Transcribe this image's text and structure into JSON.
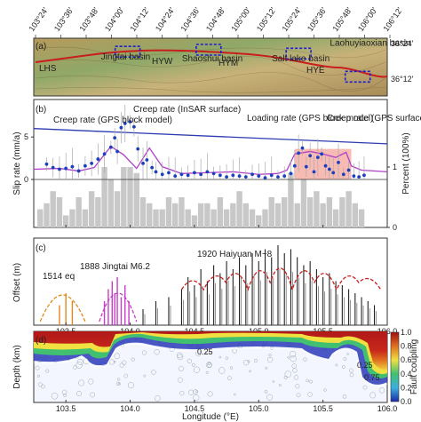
{
  "chart_data": [
    {
      "panel": "a",
      "type": "map",
      "panel_label": "(a)",
      "top_lon_ticks": [
        "103°24'",
        "103°36'",
        "103°48'",
        "104°00'",
        "104°12'",
        "104°24'",
        "104°36'",
        "104°48'",
        "105°00'",
        "105°12'",
        "105°24'",
        "105°36'",
        "105°48'",
        "106°00'",
        "106°12'"
      ],
      "lat_ticks": [
        "36°24'",
        "36°12'"
      ],
      "map_labels": [
        {
          "text": "Jingtai basin",
          "lon": 103.98,
          "lat": 36.29
        },
        {
          "text": "Shaoshui basin",
          "lon": 104.61,
          "lat": 36.28
        },
        {
          "text": "Salt lake basin",
          "lon": 105.31,
          "lat": 36.28
        },
        {
          "text": "Laohuyiaoxian basin",
          "lon": 105.83,
          "lat": 36.36
        }
      ],
      "fault_segments": [
        "LHS",
        "HYW",
        "HYM",
        "HYE"
      ],
      "colors": {
        "fault": "#c81e1e",
        "basin_box": "#1c1cd2",
        "label": "#1414b4",
        "segment": "#c81e1e"
      }
    },
    {
      "panel": "b",
      "type": "scatter",
      "panel_label": "(b)",
      "ylabel": "Slip rate (mm/a)",
      "y2label": "Percent (100%)",
      "ylim": [
        0,
        9
      ],
      "y_ticks": [
        0,
        5
      ],
      "y2_ticks": [
        0,
        1
      ],
      "xlim": [
        103.25,
        106.0
      ],
      "annotations": [
        "Creep rate (GPS block model)",
        "Creep rate (InSAR surface)",
        "Loading rate (GPS block model)",
        "Creep rate (GPS surface)"
      ],
      "loading_line": [
        [
          103.25,
          6.0
        ],
        [
          106.0,
          4.2
        ]
      ],
      "insar_x": [
        103.35,
        103.4,
        103.45,
        103.5,
        103.55,
        103.6,
        103.65,
        103.7,
        103.75,
        103.8,
        103.85,
        103.88,
        103.9,
        103.93,
        103.96,
        104.0,
        104.03,
        104.06,
        104.1,
        104.13,
        104.17,
        104.2,
        104.25,
        104.3,
        104.35,
        104.4,
        104.45,
        104.5,
        104.55,
        104.6,
        104.65,
        104.7,
        104.75,
        104.8,
        104.85,
        104.9,
        104.95,
        105.0,
        105.05,
        105.1,
        105.15,
        105.2,
        105.25,
        105.28,
        105.31,
        105.34,
        105.37,
        105.4,
        105.43,
        105.46,
        105.49,
        105.52,
        105.55,
        105.58,
        105.62,
        105.66,
        105.7,
        105.74,
        105.78,
        105.82
      ],
      "insar_y": [
        1.8,
        1.4,
        1.2,
        1.3,
        1.5,
        1.0,
        1.6,
        1.9,
        2.4,
        3.0,
        3.8,
        4.9,
        3.3,
        6.1,
        6.6,
        6.8,
        6.2,
        3.6,
        1.9,
        2.3,
        1.4,
        0.9,
        0.6,
        0.8,
        0.4,
        0.6,
        0.5,
        0.8,
        0.6,
        0.9,
        0.7,
        0.5,
        0.3,
        0.5,
        0.4,
        0.3,
        0.6,
        0.4,
        0.2,
        0.5,
        0.3,
        0.4,
        0.7,
        1.6,
        3.1,
        3.7,
        1.5,
        2.8,
        0.9,
        2.6,
        3.0,
        1.6,
        1.2,
        0.8,
        2.0,
        0.6,
        1.1,
        0.4,
        0.3,
        0.5
      ],
      "gps_model_x": [
        103.25,
        103.45,
        103.6,
        103.72,
        103.85,
        103.95,
        104.05,
        104.15,
        104.25,
        104.4,
        104.6,
        104.8,
        105.0,
        105.15,
        105.22,
        105.28,
        105.4,
        105.5,
        105.6,
        105.68,
        105.72,
        105.8,
        106.0
      ],
      "gps_model_y": [
        1.2,
        1.3,
        1.0,
        1.4,
        3.9,
        2.9,
        1.3,
        3.7,
        1.5,
        0.7,
        0.8,
        0.9,
        0.6,
        0.7,
        1.1,
        3.0,
        3.3,
        3.0,
        2.6,
        3.2,
        1.6,
        1.1,
        0.9
      ],
      "gps_surface_box": {
        "x": [
          105.28,
          105.72
        ],
        "y": [
          0,
          3.6
        ]
      },
      "percent_bars_x": [
        103.3,
        103.35,
        103.4,
        103.45,
        103.5,
        103.55,
        103.6,
        103.65,
        103.7,
        103.75,
        103.8,
        103.85,
        103.9,
        103.95,
        104.0,
        104.05,
        104.1,
        104.15,
        104.2,
        104.25,
        104.3,
        104.35,
        104.4,
        104.45,
        104.5,
        104.55,
        104.6,
        104.65,
        104.7,
        104.75,
        104.8,
        104.85,
        104.9,
        104.95,
        105.0,
        105.05,
        105.1,
        105.15,
        105.2,
        105.25,
        105.3,
        105.35,
        105.4,
        105.45,
        105.5,
        105.55,
        105.6,
        105.65,
        105.7,
        105.75,
        105.8
      ],
      "percent_bars_y": [
        0.3,
        0.4,
        0.6,
        0.5,
        0.2,
        0.3,
        0.5,
        0.3,
        0.6,
        0.5,
        1.0,
        0.8,
        0.6,
        1.0,
        1.0,
        0.9,
        0.5,
        0.4,
        0.3,
        0.3,
        0.5,
        0.4,
        0.5,
        0.3,
        0.2,
        0.4,
        0.4,
        0.3,
        0.5,
        0.3,
        0.4,
        0.6,
        0.4,
        0.3,
        0.2,
        0.3,
        0.5,
        0.4,
        0.5,
        0.9,
        0.4,
        0.8,
        0.5,
        0.6,
        0.4,
        0.5,
        0.3,
        0.5,
        0.6,
        0.4,
        0.3
      ],
      "colors": {
        "insar": "#1a3fbf",
        "gps_model": "#b040c8",
        "loading": "#2b3bb0",
        "gps_surface": "#f4a49a",
        "bars": "#c8c8c8",
        "errorbar": "#aaaaaa"
      }
    },
    {
      "panel": "c",
      "type": "bar",
      "panel_label": "(c)",
      "ylabel": "Offset (m)",
      "xlim": [
        103.25,
        106.0
      ],
      "x_ticks": [
        103.5,
        104.0,
        104.5,
        105.0,
        105.5,
        106.0
      ],
      "events": [
        {
          "label": "1514 eq",
          "color": "#e08a1e",
          "x": [
            103.45,
            103.5,
            103.55
          ],
          "heights": [
            0.25,
            0.4,
            0.3
          ],
          "arc": [
            103.3,
            103.65
          ]
        },
        {
          "label": "1888 Jingtai M6.2",
          "color": "#c83cc8",
          "x": [
            103.8,
            103.83,
            103.86,
            103.88,
            103.9,
            103.93,
            103.96,
            103.99
          ],
          "heights": [
            0.3,
            0.45,
            0.55,
            0.4,
            0.6,
            0.35,
            0.5,
            0.3
          ],
          "arc": [
            103.76,
            104.05
          ]
        },
        {
          "label": "1920 Haiyuan M~8",
          "color": "#c81e1e",
          "arc": [
            104.4,
            105.95
          ]
        }
      ],
      "haiyuan_x": [
        104.1,
        104.2,
        104.3,
        104.4,
        104.45,
        104.5,
        104.55,
        104.6,
        104.65,
        104.7,
        104.75,
        104.8,
        104.85,
        104.9,
        104.95,
        105.0,
        105.05,
        105.1,
        105.15,
        105.2,
        105.25,
        105.3,
        105.35,
        105.4,
        105.45,
        105.5,
        105.55,
        105.6,
        105.65,
        105.7,
        105.75,
        105.8,
        105.85,
        105.9
      ],
      "haiyuan_h": [
        0.2,
        0.3,
        0.35,
        0.45,
        0.6,
        0.5,
        0.7,
        0.55,
        0.75,
        0.65,
        0.8,
        0.7,
        0.85,
        0.75,
        0.9,
        0.8,
        0.95,
        0.85,
        1.0,
        0.9,
        0.95,
        0.85,
        0.75,
        0.8,
        0.7,
        0.6,
        0.65,
        0.55,
        0.5,
        0.45,
        0.4,
        0.35,
        0.3,
        0.25
      ]
    },
    {
      "panel": "d",
      "type": "heatmap",
      "panel_label": "(d)",
      "ylabel": "Depth (km)",
      "xlabel": "Longitude (°E)",
      "colorbar_label": "Fault coupling",
      "colorbar_ticks": [
        "1.0",
        "0.8",
        "0.6",
        "0.4",
        "0.2",
        "0.0"
      ],
      "contour_labels": [
        "0.25",
        "0.25",
        "0.75"
      ],
      "x_ticks": [
        103.5,
        104.0,
        104.5,
        105.0,
        105.5,
        106.0
      ],
      "xlim": [
        103.25,
        106.0
      ]
    }
  ]
}
